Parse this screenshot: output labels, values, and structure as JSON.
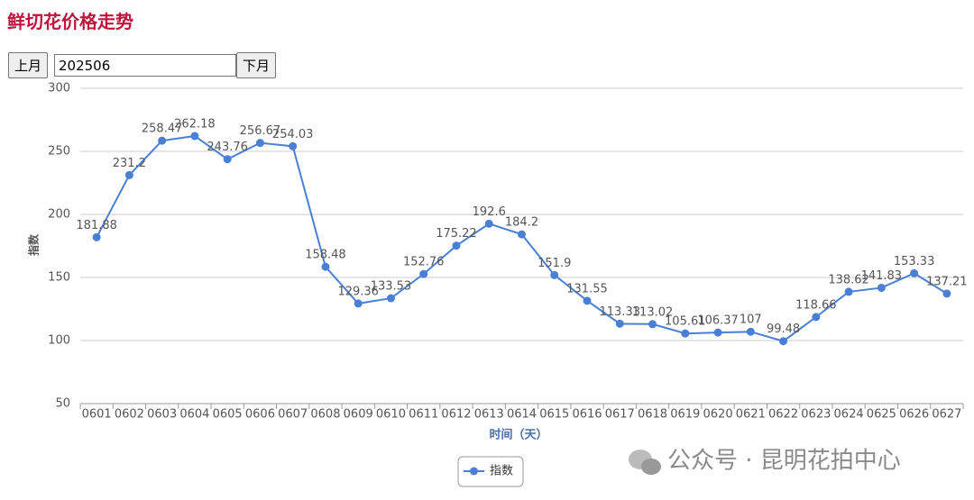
{
  "header": {
    "title": "鲜切花价格走势"
  },
  "controls": {
    "prev": "上月",
    "month": "202506",
    "next": "下月"
  },
  "chart_data": {
    "type": "line",
    "x_label": "时间（天）",
    "y_label": "指数",
    "categories": [
      "0601",
      "0602",
      "0603",
      "0604",
      "0605",
      "0606",
      "0607",
      "0608",
      "0609",
      "0610",
      "0611",
      "0612",
      "0613",
      "0614",
      "0615",
      "0616",
      "0617",
      "0618",
      "0619",
      "0620",
      "0621",
      "0622",
      "0623",
      "0624",
      "0625",
      "0626",
      "0627"
    ],
    "series": [
      {
        "name": "指数",
        "color": "#4a7fd6",
        "values": [
          181.88,
          231.2,
          258.47,
          262.18,
          243.76,
          256.67,
          254.03,
          158.48,
          129.36,
          133.53,
          152.76,
          175.22,
          192.6,
          184.2,
          151.9,
          131.55,
          113.33,
          113.02,
          105.61,
          106.37,
          107,
          99.48,
          118.66,
          138.62,
          141.83,
          153.33,
          137.21
        ]
      }
    ],
    "ylim": [
      50,
      300
    ],
    "yticks": [
      50,
      100,
      150,
      200,
      250,
      300
    ],
    "grid": true,
    "legend": "bottom"
  },
  "watermark": "公众号 · 昆明花拍中心"
}
